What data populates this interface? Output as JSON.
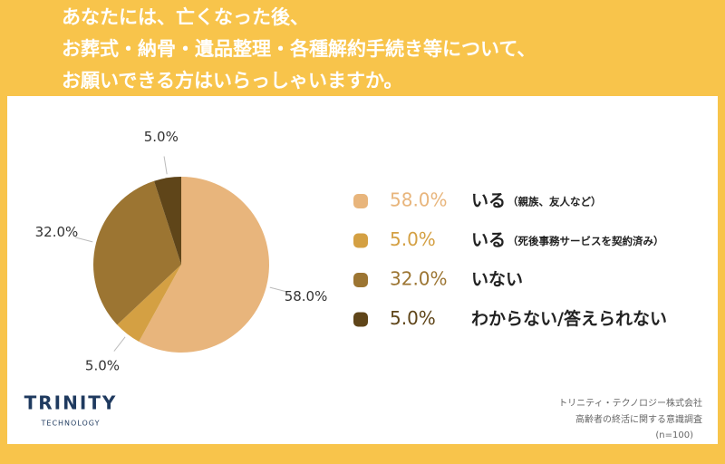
{
  "chart_data": {
    "type": "pie",
    "title": [
      "あなたには、亡くなった後、",
      "お葬式・納骨・遺品整理・各種解約手続き等について、",
      "お願いできる方はいらっしゃいますか。"
    ],
    "categories": [
      "いる",
      "いる",
      "いない",
      "わからない/答えられない"
    ],
    "category_notes": [
      "（親族、友人など）",
      "（死後事務サービスを契約済み）",
      null,
      null
    ],
    "values": [
      58,
      5,
      32,
      5
    ],
    "value_labels": [
      "58.0%",
      "5.0%",
      "32.0%",
      "5.0%"
    ],
    "colors": [
      "#e8b57c",
      "#d4a043",
      "#9c7532",
      "#5f4519"
    ]
  },
  "logo": {
    "name": "TRINITY",
    "sub": "TECHNOLOGY"
  },
  "source": [
    "トリニティ・テクノロジー株式会社",
    "高齢者の終活に関する意識調査",
    "(n=100)"
  ]
}
